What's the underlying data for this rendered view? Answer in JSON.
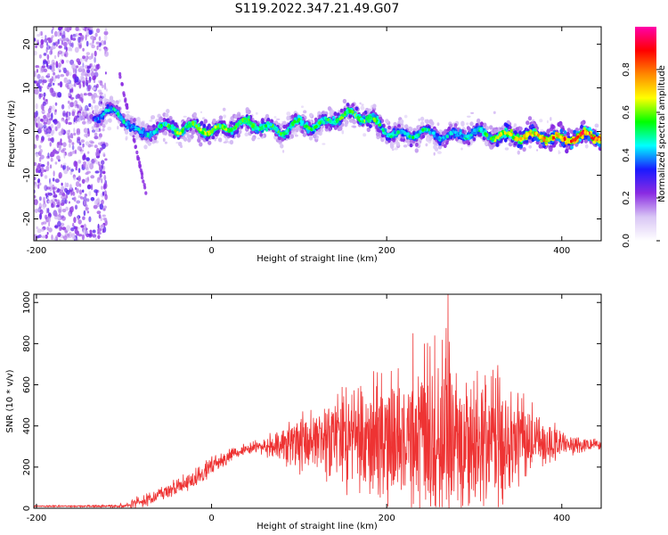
{
  "title": "S119.2022.347.21.49.G07",
  "colors": {
    "snr_line": "#ee3333",
    "colormap": [
      "#ffffff",
      "#d9c6f5",
      "#8a2be2",
      "#1a1aff",
      "#00ffff",
      "#00ff00",
      "#ffff00",
      "#ff8800",
      "#ff0000",
      "#ff00aa"
    ]
  },
  "chart_data": [
    {
      "type": "heatmap",
      "title": "S119.2022.347.21.49.G07",
      "xlabel": "Height of straight line (km)",
      "ylabel": "Frequency (Hz)",
      "xlim": [
        -203,
        445
      ],
      "ylim": [
        -25,
        24
      ],
      "xticks": [
        -200,
        0,
        200,
        400
      ],
      "yticks": [
        -20,
        -10,
        0,
        10,
        20
      ],
      "colorbar": {
        "label": "Normalized spectral amplitude",
        "range": [
          0,
          1
        ],
        "ticks": [
          "0.0",
          "0.2",
          "0.4",
          "0.6",
          "0.8"
        ]
      },
      "ridge": {
        "x": [
          -135,
          -120,
          -100,
          -90,
          -80,
          -60,
          -40,
          -20,
          0,
          20,
          40,
          60,
          80,
          100,
          120,
          140,
          160,
          180,
          200,
          220,
          240,
          260,
          280,
          300,
          320,
          340,
          360,
          380,
          400,
          420,
          440
        ],
        "freq": [
          3,
          5,
          3,
          1,
          -1,
          1,
          0.5,
          1,
          0,
          1,
          2,
          1,
          0,
          2,
          1,
          3,
          4,
          3,
          0,
          -1,
          0,
          -1,
          -1,
          0,
          -1,
          -1,
          -1,
          -1,
          -2,
          -1,
          -1
        ],
        "amplitude": [
          0.35,
          0.45,
          0.5,
          0.45,
          0.45,
          0.55,
          0.6,
          0.6,
          0.65,
          0.6,
          0.6,
          0.55,
          0.55,
          0.55,
          0.55,
          0.55,
          0.6,
          0.6,
          0.5,
          0.5,
          0.5,
          0.45,
          0.45,
          0.5,
          0.6,
          0.7,
          0.75,
          0.8,
          0.85,
          0.9,
          0.9
        ]
      },
      "noise_region_x": [
        -203,
        -120
      ],
      "grid": false
    },
    {
      "type": "line",
      "xlabel": "Height of straight line (km)",
      "ylabel": "SNR (10 * v/v)",
      "xlim": [
        -203,
        445
      ],
      "ylim": [
        0,
        1040
      ],
      "xticks": [
        -200,
        0,
        200,
        400
      ],
      "yticks": [
        0,
        200,
        400,
        600,
        800,
        1000
      ],
      "envelope": {
        "x": [
          -203,
          -150,
          -120,
          -100,
          -80,
          -60,
          -40,
          -20,
          0,
          20,
          40,
          60,
          80,
          100,
          120,
          140,
          160,
          180,
          200,
          220,
          240,
          260,
          270,
          280,
          300,
          320,
          340,
          360,
          380,
          400,
          420,
          440
        ],
        "mean": [
          10,
          10,
          10,
          12,
          30,
          60,
          100,
          150,
          200,
          260,
          290,
          300,
          300,
          310,
          320,
          330,
          330,
          340,
          340,
          340,
          340,
          350,
          350,
          340,
          340,
          340,
          330,
          330,
          320,
          320,
          310,
          310
        ],
        "amplitude": [
          5,
          5,
          8,
          15,
          40,
          45,
          50,
          60,
          60,
          40,
          30,
          50,
          100,
          180,
          200,
          250,
          300,
          350,
          380,
          400,
          500,
          600,
          700,
          450,
          500,
          400,
          300,
          250,
          150,
          80,
          50,
          40
        ]
      },
      "peaks": [
        {
          "x": 270,
          "y": 1040
        },
        {
          "x": 255,
          "y": 840
        },
        {
          "x": 230,
          "y": 850
        },
        {
          "x": 243,
          "y": 800
        }
      ],
      "grid": false
    }
  ]
}
